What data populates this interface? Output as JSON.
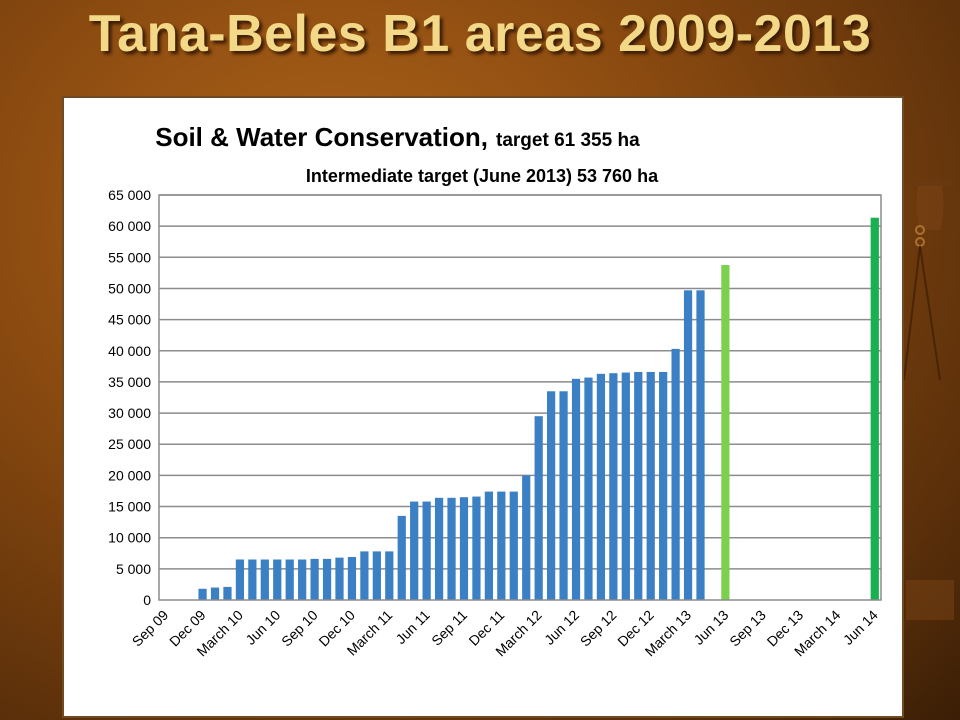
{
  "slide": {
    "title": "Tana-Beles B1 areas 2009-2013"
  },
  "chart_data": {
    "type": "bar",
    "title": "Soil & Water Conservation,",
    "title_suffix": "target 61 355 ha",
    "subtitle": "Intermediate target (June 2013) 53 760 ha",
    "xlabel": "",
    "ylabel": "",
    "ylim": [
      0,
      65000
    ],
    "ytick_step": 5000,
    "ytick_labels": [
      "0",
      "5 000",
      "10 000",
      "15 000",
      "20 000",
      "25 000",
      "30 000",
      "35 000",
      "40 000",
      "45 000",
      "50 000",
      "55 000",
      "60 000",
      "65 000"
    ],
    "grid": true,
    "legend": "none",
    "colors": {
      "actual": "#3b7fc4",
      "intermediate_target": "#7dd04e",
      "final_target": "#19b050"
    },
    "categories": [
      "Sep 09",
      "",
      "",
      "Dec 09",
      "",
      "",
      "March 10",
      "",
      "",
      "Jun 10",
      "",
      "",
      "Sep 10",
      "",
      "",
      "Dec 10",
      "",
      "",
      "March 11",
      "",
      "",
      "Jun 11",
      "",
      "",
      "Sep 11",
      "",
      "",
      "Dec 11",
      "",
      "",
      "March 12",
      "",
      "",
      "Jun 12",
      "",
      "",
      "Sep 12",
      "",
      "",
      "Dec 12",
      "",
      "",
      "March 13",
      "",
      "",
      "Jun 13",
      "",
      "",
      "Sep 13",
      "",
      "",
      "Dec 13",
      "",
      "",
      "March 14",
      "",
      "",
      "Jun 14"
    ],
    "values": [
      0,
      0,
      0,
      1800,
      2000,
      2100,
      6500,
      6500,
      6500,
      6500,
      6500,
      6500,
      6600,
      6600,
      6800,
      6900,
      7800,
      7800,
      7800,
      13500,
      15800,
      15800,
      16400,
      16400,
      16500,
      16600,
      17400,
      17400,
      17400,
      20000,
      29500,
      33500,
      33500,
      35500,
      35700,
      36300,
      36400,
      36500,
      36600,
      36600,
      36600,
      40300,
      49700,
      49700,
      0,
      53760,
      0,
      0,
      0,
      0,
      0,
      0,
      0,
      0,
      0,
      0,
      0,
      61355
    ],
    "point_types": {
      "45": "intermediate_target",
      "57": "final_target"
    }
  }
}
